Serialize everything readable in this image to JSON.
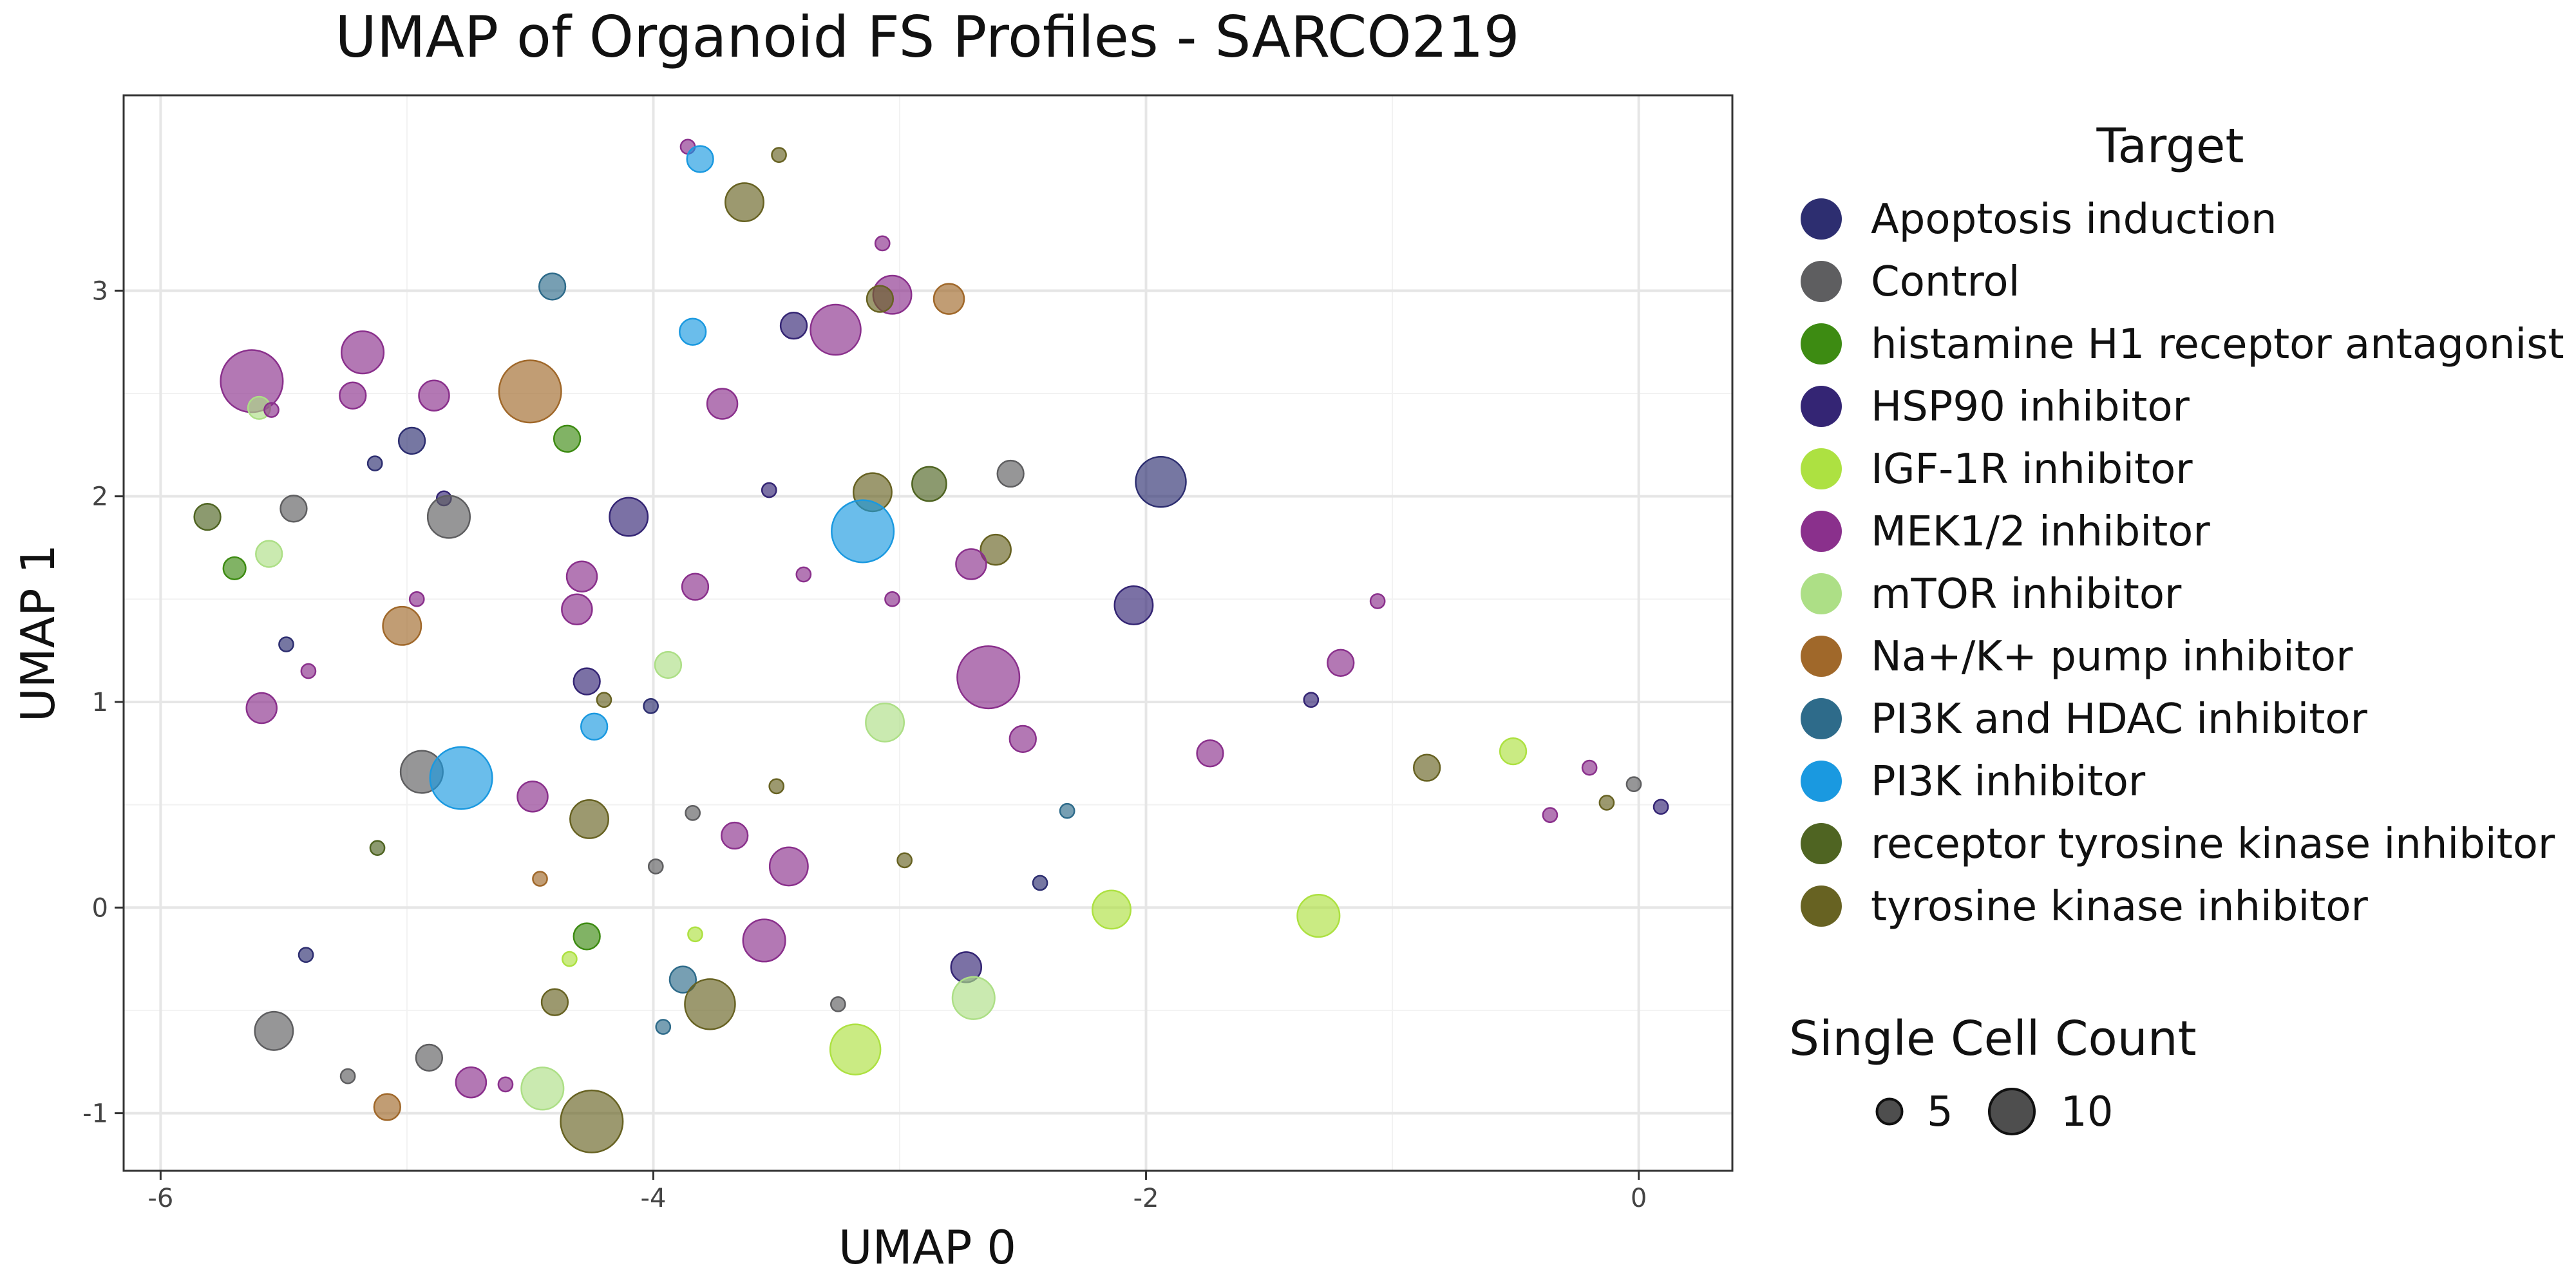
{
  "chart_data": {
    "type": "scatter",
    "title": "UMAP of Organoid FS Profiles - SARCO219",
    "xlabel": "UMAP 0",
    "ylabel": "UMAP 1",
    "xlim": [
      -6.15,
      0.38
    ],
    "ylim": [
      -1.28,
      3.95
    ],
    "xticks": [
      -6,
      -4,
      -2,
      0
    ],
    "yticks": [
      -1,
      0,
      1,
      2,
      3
    ],
    "grid": true,
    "color_legend": {
      "title": "Target",
      "entries": [
        {
          "label": "Apoptosis induction",
          "color": "#2d2e70"
        },
        {
          "label": "Control",
          "color": "#5e5e60"
        },
        {
          "label": "histamine H1 receptor antagonist",
          "color": "#3d8b12"
        },
        {
          "label": "HSP90 inhibitor",
          "color": "#342574"
        },
        {
          "label": "IGF-1R inhibitor",
          "color": "#ade141"
        },
        {
          "label": "MEK1/2 inhibitor",
          "color": "#8a308c"
        },
        {
          "label": "mTOR inhibitor",
          "color": "#addf86"
        },
        {
          "label": "Na+/K+ pump inhibitor",
          "color": "#a0682a"
        },
        {
          "label": "PI3K and HDAC inhibitor",
          "color": "#2e6b8a"
        },
        {
          "label": "PI3K inhibitor",
          "color": "#1a99e0"
        },
        {
          "label": "receptor tyrosine kinase inhibitor",
          "color": "#4f6422"
        },
        {
          "label": "tyrosine kinase inhibitor",
          "color": "#676222"
        }
      ]
    },
    "size_legend": {
      "title": "Single Cell Count",
      "entries": [
        {
          "label": "5",
          "value": 5
        },
        {
          "label": "10",
          "value": 10
        }
      ]
    },
    "points": [
      {
        "x": -3.86,
        "y": 3.7,
        "size": 1,
        "target": "MEK1/2 inhibitor"
      },
      {
        "x": -3.81,
        "y": 3.64,
        "size": 4,
        "target": "PI3K inhibitor"
      },
      {
        "x": -3.49,
        "y": 3.66,
        "size": 1,
        "target": "tyrosine kinase inhibitor"
      },
      {
        "x": -3.63,
        "y": 3.43,
        "size": 7,
        "target": "tyrosine kinase inhibitor"
      },
      {
        "x": -3.07,
        "y": 3.23,
        "size": 1,
        "target": "MEK1/2 inhibitor"
      },
      {
        "x": -4.41,
        "y": 3.02,
        "size": 4,
        "target": "PI3K and HDAC inhibitor"
      },
      {
        "x": -3.03,
        "y": 2.98,
        "size": 7,
        "target": "MEK1/2 inhibitor"
      },
      {
        "x": -3.08,
        "y": 2.96,
        "size": 4,
        "target": "tyrosine kinase inhibitor"
      },
      {
        "x": -2.8,
        "y": 2.96,
        "size": 5,
        "target": "Na+/K+ pump inhibitor"
      },
      {
        "x": -3.26,
        "y": 2.81,
        "size": 10,
        "target": "MEK1/2 inhibitor"
      },
      {
        "x": -3.43,
        "y": 2.83,
        "size": 4,
        "target": "HSP90 inhibitor"
      },
      {
        "x": -3.84,
        "y": 2.8,
        "size": 4,
        "target": "PI3K inhibitor"
      },
      {
        "x": -5.18,
        "y": 2.7,
        "size": 8,
        "target": "MEK1/2 inhibitor"
      },
      {
        "x": -5.63,
        "y": 2.56,
        "size": 13,
        "target": "MEK1/2 inhibitor"
      },
      {
        "x": -5.6,
        "y": 2.43,
        "size": 3,
        "target": "mTOR inhibitor"
      },
      {
        "x": -5.55,
        "y": 2.42,
        "size": 1,
        "target": "MEK1/2 inhibitor"
      },
      {
        "x": -5.22,
        "y": 2.49,
        "size": 4,
        "target": "MEK1/2 inhibitor"
      },
      {
        "x": -4.89,
        "y": 2.49,
        "size": 5,
        "target": "MEK1/2 inhibitor"
      },
      {
        "x": -4.5,
        "y": 2.51,
        "size": 13,
        "target": "Na+/K+ pump inhibitor"
      },
      {
        "x": -3.72,
        "y": 2.45,
        "size": 5,
        "target": "MEK1/2 inhibitor"
      },
      {
        "x": -4.35,
        "y": 2.28,
        "size": 4,
        "target": "histamine H1 receptor antagonist"
      },
      {
        "x": -4.98,
        "y": 2.27,
        "size": 4,
        "target": "Apoptosis induction"
      },
      {
        "x": -5.13,
        "y": 2.16,
        "size": 1,
        "target": "Apoptosis induction"
      },
      {
        "x": -2.55,
        "y": 2.11,
        "size": 4,
        "target": "Control"
      },
      {
        "x": -1.94,
        "y": 2.07,
        "size": 10,
        "target": "Apoptosis induction"
      },
      {
        "x": -2.88,
        "y": 2.06,
        "size": 6,
        "target": "receptor tyrosine kinase inhibitor"
      },
      {
        "x": -3.11,
        "y": 2.02,
        "size": 7,
        "target": "tyrosine kinase inhibitor"
      },
      {
        "x": -3.53,
        "y": 2.03,
        "size": 1,
        "target": "HSP90 inhibitor"
      },
      {
        "x": -4.85,
        "y": 1.99,
        "size": 1,
        "target": "HSP90 inhibitor"
      },
      {
        "x": -5.46,
        "y": 1.94,
        "size": 4,
        "target": "Control"
      },
      {
        "x": -4.83,
        "y": 1.9,
        "size": 8,
        "target": "Control"
      },
      {
        "x": -4.1,
        "y": 1.9,
        "size": 7,
        "target": "HSP90 inhibitor"
      },
      {
        "x": -5.81,
        "y": 1.9,
        "size": 4,
        "target": "receptor tyrosine kinase inhibitor"
      },
      {
        "x": -3.15,
        "y": 1.83,
        "size": 13,
        "target": "PI3K inhibitor"
      },
      {
        "x": -2.61,
        "y": 1.74,
        "size": 5,
        "target": "tyrosine kinase inhibitor"
      },
      {
        "x": -5.56,
        "y": 1.72,
        "size": 4,
        "target": "mTOR inhibitor"
      },
      {
        "x": -2.71,
        "y": 1.67,
        "size": 5,
        "target": "MEK1/2 inhibitor"
      },
      {
        "x": -5.7,
        "y": 1.65,
        "size": 3,
        "target": "histamine H1 receptor antagonist"
      },
      {
        "x": -4.29,
        "y": 1.61,
        "size": 5,
        "target": "MEK1/2 inhibitor"
      },
      {
        "x": -3.39,
        "y": 1.62,
        "size": 1,
        "target": "MEK1/2 inhibitor"
      },
      {
        "x": -3.83,
        "y": 1.56,
        "size": 4,
        "target": "MEK1/2 inhibitor"
      },
      {
        "x": -4.96,
        "y": 1.5,
        "size": 1,
        "target": "MEK1/2 inhibitor"
      },
      {
        "x": -3.03,
        "y": 1.5,
        "size": 1,
        "target": "MEK1/2 inhibitor"
      },
      {
        "x": -1.06,
        "y": 1.49,
        "size": 1,
        "target": "MEK1/2 inhibitor"
      },
      {
        "x": -2.05,
        "y": 1.47,
        "size": 7,
        "target": "HSP90 inhibitor"
      },
      {
        "x": -4.31,
        "y": 1.45,
        "size": 5,
        "target": "MEK1/2 inhibitor"
      },
      {
        "x": -5.02,
        "y": 1.37,
        "size": 7,
        "target": "Na+/K+ pump inhibitor"
      },
      {
        "x": -5.49,
        "y": 1.28,
        "size": 1,
        "target": "Apoptosis induction"
      },
      {
        "x": -3.94,
        "y": 1.18,
        "size": 4,
        "target": "mTOR inhibitor"
      },
      {
        "x": -2.64,
        "y": 1.12,
        "size": 13,
        "target": "MEK1/2 inhibitor"
      },
      {
        "x": -1.21,
        "y": 1.19,
        "size": 4,
        "target": "MEK1/2 inhibitor"
      },
      {
        "x": -5.4,
        "y": 1.15,
        "size": 1,
        "target": "MEK1/2 inhibitor"
      },
      {
        "x": -4.27,
        "y": 1.1,
        "size": 4,
        "target": "HSP90 inhibitor"
      },
      {
        "x": -4.2,
        "y": 1.01,
        "size": 1,
        "target": "tyrosine kinase inhibitor"
      },
      {
        "x": -1.33,
        "y": 1.01,
        "size": 1,
        "target": "HSP90 inhibitor"
      },
      {
        "x": -4.01,
        "y": 0.98,
        "size": 1,
        "target": "Apoptosis induction"
      },
      {
        "x": -5.59,
        "y": 0.97,
        "size": 5,
        "target": "MEK1/2 inhibitor"
      },
      {
        "x": -3.06,
        "y": 0.9,
        "size": 7,
        "target": "mTOR inhibitor"
      },
      {
        "x": -4.24,
        "y": 0.88,
        "size": 4,
        "target": "PI3K inhibitor"
      },
      {
        "x": -2.5,
        "y": 0.82,
        "size": 4,
        "target": "MEK1/2 inhibitor"
      },
      {
        "x": -1.74,
        "y": 0.75,
        "size": 4,
        "target": "MEK1/2 inhibitor"
      },
      {
        "x": -0.51,
        "y": 0.76,
        "size": 4,
        "target": "IGF-1R inhibitor"
      },
      {
        "x": -0.86,
        "y": 0.68,
        "size": 4,
        "target": "tyrosine kinase inhibitor"
      },
      {
        "x": -0.2,
        "y": 0.68,
        "size": 1,
        "target": "MEK1/2 inhibitor"
      },
      {
        "x": -4.94,
        "y": 0.66,
        "size": 8,
        "target": "Control"
      },
      {
        "x": -4.78,
        "y": 0.63,
        "size": 13,
        "target": "PI3K inhibitor"
      },
      {
        "x": -0.02,
        "y": 0.6,
        "size": 1,
        "target": "Control"
      },
      {
        "x": -3.5,
        "y": 0.59,
        "size": 1,
        "target": "tyrosine kinase inhibitor"
      },
      {
        "x": -4.49,
        "y": 0.54,
        "size": 5,
        "target": "MEK1/2 inhibitor"
      },
      {
        "x": -0.13,
        "y": 0.51,
        "size": 1,
        "target": "tyrosine kinase inhibitor"
      },
      {
        "x": 0.09,
        "y": 0.49,
        "size": 1,
        "target": "HSP90 inhibitor"
      },
      {
        "x": -2.32,
        "y": 0.47,
        "size": 1,
        "target": "PI3K and HDAC inhibitor"
      },
      {
        "x": -3.84,
        "y": 0.46,
        "size": 1,
        "target": "Control"
      },
      {
        "x": -0.36,
        "y": 0.45,
        "size": 1,
        "target": "MEK1/2 inhibitor"
      },
      {
        "x": -4.26,
        "y": 0.43,
        "size": 7,
        "target": "tyrosine kinase inhibitor"
      },
      {
        "x": -3.67,
        "y": 0.35,
        "size": 4,
        "target": "MEK1/2 inhibitor"
      },
      {
        "x": -5.12,
        "y": 0.29,
        "size": 1,
        "target": "receptor tyrosine kinase inhibitor"
      },
      {
        "x": -2.98,
        "y": 0.23,
        "size": 1,
        "target": "tyrosine kinase inhibitor"
      },
      {
        "x": -3.45,
        "y": 0.2,
        "size": 7,
        "target": "MEK1/2 inhibitor"
      },
      {
        "x": -3.99,
        "y": 0.2,
        "size": 1,
        "target": "Control"
      },
      {
        "x": -4.46,
        "y": 0.14,
        "size": 1,
        "target": "Na+/K+ pump inhibitor"
      },
      {
        "x": -2.43,
        "y": 0.12,
        "size": 1,
        "target": "Apoptosis induction"
      },
      {
        "x": -2.14,
        "y": -0.01,
        "size": 7,
        "target": "IGF-1R inhibitor"
      },
      {
        "x": -1.3,
        "y": -0.04,
        "size": 8,
        "target": "IGF-1R inhibitor"
      },
      {
        "x": -3.83,
        "y": -0.13,
        "size": 1,
        "target": "IGF-1R inhibitor"
      },
      {
        "x": -4.27,
        "y": -0.14,
        "size": 4,
        "target": "histamine H1 receptor antagonist"
      },
      {
        "x": -3.55,
        "y": -0.16,
        "size": 8,
        "target": "MEK1/2 inhibitor"
      },
      {
        "x": -5.41,
        "y": -0.23,
        "size": 1,
        "target": "Apoptosis induction"
      },
      {
        "x": -4.34,
        "y": -0.25,
        "size": 1,
        "target": "IGF-1R inhibitor"
      },
      {
        "x": -2.73,
        "y": -0.29,
        "size": 5,
        "target": "HSP90 inhibitor"
      },
      {
        "x": -3.88,
        "y": -0.35,
        "size": 4,
        "target": "PI3K and HDAC inhibitor"
      },
      {
        "x": -2.7,
        "y": -0.44,
        "size": 8,
        "target": "mTOR inhibitor"
      },
      {
        "x": -4.4,
        "y": -0.46,
        "size": 4,
        "target": "tyrosine kinase inhibitor"
      },
      {
        "x": -3.77,
        "y": -0.47,
        "size": 10,
        "target": "tyrosine kinase inhibitor"
      },
      {
        "x": -3.25,
        "y": -0.47,
        "size": 1,
        "target": "Control"
      },
      {
        "x": -3.96,
        "y": -0.58,
        "size": 1,
        "target": "PI3K and HDAC inhibitor"
      },
      {
        "x": -5.54,
        "y": -0.6,
        "size": 7,
        "target": "Control"
      },
      {
        "x": -3.18,
        "y": -0.69,
        "size": 10,
        "target": "IGF-1R inhibitor"
      },
      {
        "x": -4.91,
        "y": -0.73,
        "size": 4,
        "target": "Control"
      },
      {
        "x": -5.24,
        "y": -0.82,
        "size": 1,
        "target": "Control"
      },
      {
        "x": -4.74,
        "y": -0.85,
        "size": 5,
        "target": "MEK1/2 inhibitor"
      },
      {
        "x": -4.6,
        "y": -0.86,
        "size": 1,
        "target": "MEK1/2 inhibitor"
      },
      {
        "x": -4.45,
        "y": -0.88,
        "size": 8,
        "target": "mTOR inhibitor"
      },
      {
        "x": -5.08,
        "y": -0.97,
        "size": 4,
        "target": "Na+/K+ pump inhibitor"
      },
      {
        "x": -4.25,
        "y": -1.04,
        "size": 13,
        "target": "tyrosine kinase inhibitor"
      }
    ]
  }
}
